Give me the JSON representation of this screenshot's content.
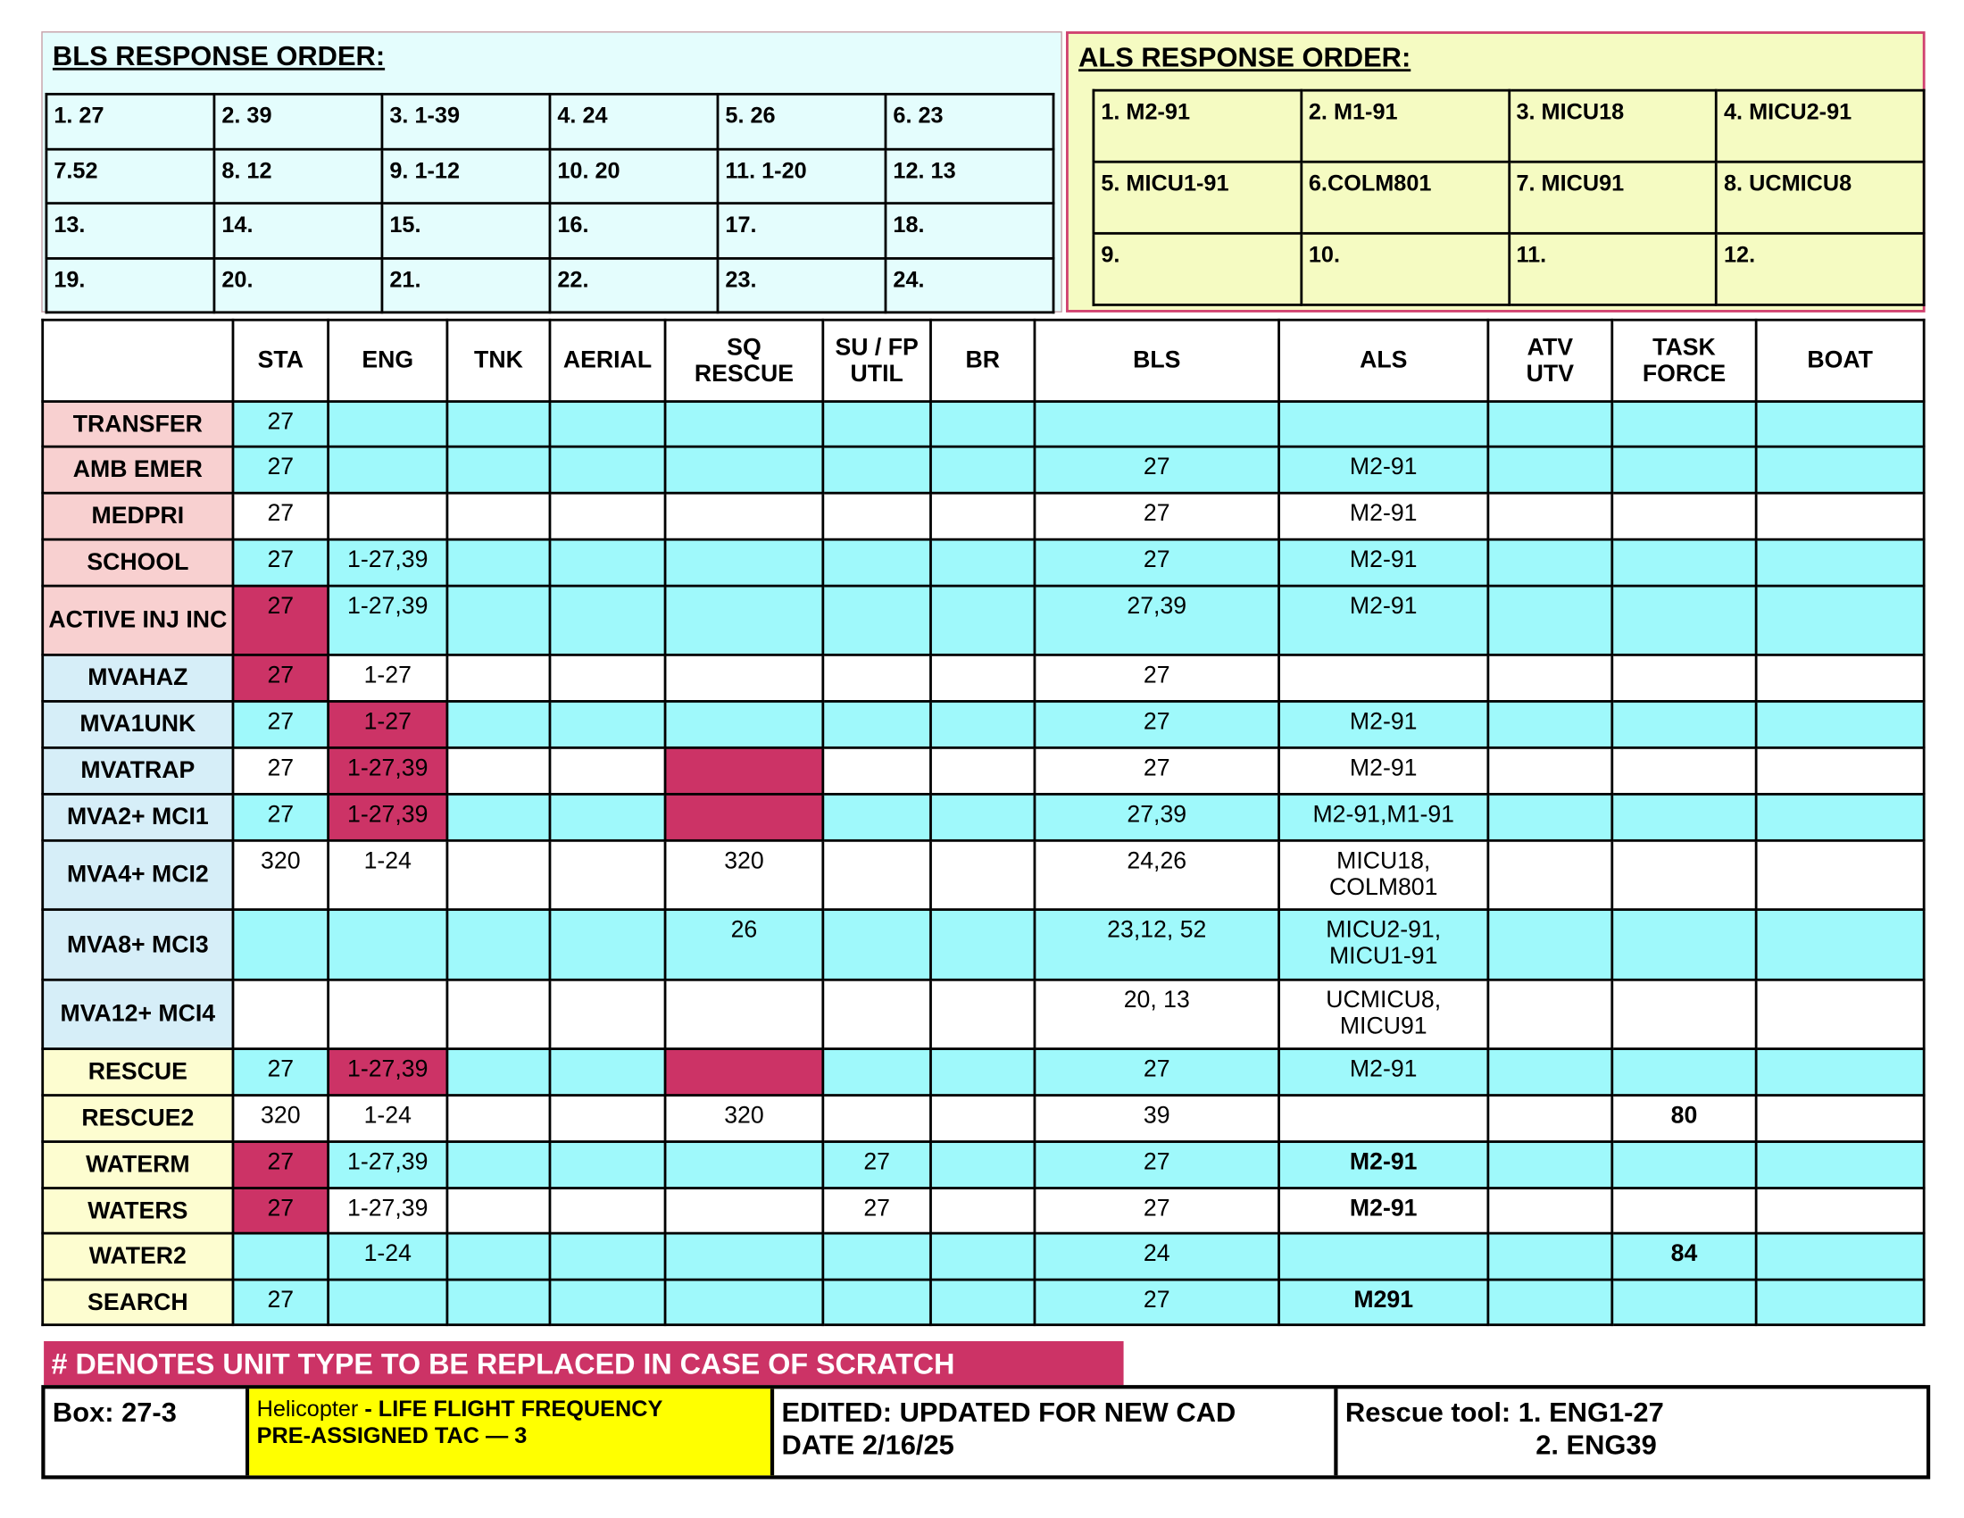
{
  "bls": {
    "title": "BLS RESPONSE ORDER:",
    "rows": [
      [
        "1. 27",
        "2. 39",
        "3. 1-39",
        "4. 24",
        "5. 26",
        "6. 23"
      ],
      [
        "7.52",
        "8. 12",
        "9. 1-12",
        "10. 20",
        "11. 1-20",
        "12. 13"
      ],
      [
        "13.",
        "14.",
        "15.",
        "16.",
        "17.",
        "18."
      ],
      [
        "19.",
        "20.",
        "21.",
        "22.",
        "23.",
        "24."
      ]
    ]
  },
  "als": {
    "title": "ALS RESPONSE ORDER:",
    "rows": [
      [
        "1. M2-91",
        "2. M1-91",
        "3. MICU18",
        "4. MICU2-91"
      ],
      [
        "5. MICU1-91",
        "6.COLM801",
        "7. MICU91",
        "8. UCMICU8"
      ],
      [
        "9.",
        "10.",
        "11.",
        "12."
      ]
    ]
  },
  "table": {
    "headers": [
      "STA",
      "ENG",
      "TNK",
      "AERIAL",
      "SQ\nRESCUE",
      "SU / FP\nUTIL",
      "BR",
      "BLS",
      "ALS",
      "ATV\nUTV",
      "TASK\nFORCE",
      "BOAT"
    ],
    "highlight_color": "#cc3366",
    "rows": [
      {
        "label": "TRANSFER",
        "label_color": "#f8d0d0",
        "fill": "#9ff9fb",
        "highlight": [],
        "bold": [],
        "cells": [
          "27",
          null,
          null,
          null,
          null,
          null,
          null,
          null,
          null,
          null,
          null,
          null
        ]
      },
      {
        "label": "AMB EMER",
        "label_color": "#f8d0d0",
        "fill": "#9ff9fb",
        "highlight": [],
        "bold": [],
        "cells": [
          "27",
          null,
          null,
          null,
          null,
          null,
          null,
          "27",
          "M2-91",
          null,
          null,
          null
        ]
      },
      {
        "label": "MEDPRI",
        "label_color": "#f8d0d0",
        "fill": "#ffffff",
        "highlight": [],
        "bold": [],
        "cells": [
          "27",
          null,
          null,
          null,
          null,
          null,
          null,
          "27",
          "M2-91",
          null,
          null,
          null
        ]
      },
      {
        "label": "SCHOOL",
        "label_color": "#f8d0d0",
        "fill": "#9ff9fb",
        "highlight": [],
        "bold": [],
        "cells": [
          "27",
          "1-27,39",
          null,
          null,
          null,
          null,
          null,
          "27",
          "M2-91",
          null,
          null,
          null
        ]
      },
      {
        "label": "ACTIVE INJ INC",
        "label_color": "#f8d0d0",
        "fill": "#9ff9fb",
        "highlight": [
          0
        ],
        "bold": [],
        "cells": [
          "27",
          "1-27,39",
          null,
          null,
          null,
          null,
          null,
          "27,39",
          "M2-91",
          null,
          null,
          null
        ]
      },
      {
        "label": "MVAHAZ",
        "label_color": "#d6eef8",
        "fill": "#ffffff",
        "highlight": [
          0
        ],
        "bold": [],
        "cells": [
          "27",
          "1-27",
          null,
          null,
          null,
          null,
          null,
          "27",
          null,
          null,
          null,
          null
        ]
      },
      {
        "label": "MVA1UNK",
        "label_color": "#d6eef8",
        "fill": "#9ff9fb",
        "highlight": [
          1
        ],
        "bold": [],
        "cells": [
          "27",
          "1-27",
          null,
          null,
          null,
          null,
          null,
          "27",
          "M2-91",
          null,
          null,
          null
        ]
      },
      {
        "label": "MVATRAP",
        "label_color": "#d6eef8",
        "fill": "#ffffff",
        "highlight": [
          1,
          4
        ],
        "bold": [],
        "cells": [
          "27",
          "1-27,39",
          null,
          null,
          null,
          null,
          null,
          "27",
          "M2-91",
          null,
          null,
          null
        ]
      },
      {
        "label": "MVA2+ MCI1",
        "label_color": "#d6eef8",
        "fill": "#9ff9fb",
        "highlight": [
          1,
          4
        ],
        "bold": [],
        "cells": [
          "27",
          "1-27,39",
          null,
          null,
          null,
          null,
          null,
          "27,39",
          "M2-91,M1-91",
          null,
          null,
          null
        ]
      },
      {
        "label": "MVA4+ MCI2",
        "label_color": "#d6eef8",
        "fill": "#ffffff",
        "highlight": [],
        "bold": [],
        "cells": [
          "320",
          "1-24",
          null,
          null,
          "320",
          null,
          null,
          "24,26",
          "MICU18,\nCOLM801",
          null,
          null,
          null
        ]
      },
      {
        "label": "MVA8+ MCI3",
        "label_color": "#d6eef8",
        "fill": "#9ff9fb",
        "highlight": [],
        "bold": [],
        "cells": [
          null,
          null,
          null,
          null,
          "26",
          null,
          null,
          "23,12, 52",
          "MICU2-91,\nMICU1-91",
          null,
          null,
          null
        ]
      },
      {
        "label": "MVA12+ MCI4",
        "label_color": "#d6eef8",
        "fill": "#ffffff",
        "highlight": [],
        "bold": [],
        "cells": [
          null,
          null,
          null,
          null,
          null,
          null,
          null,
          "20, 13",
          "UCMICU8,\nMICU91",
          null,
          null,
          null
        ]
      },
      {
        "label": "RESCUE",
        "label_color": "#fdfdd0",
        "fill": "#9ff9fb",
        "highlight": [
          1,
          4
        ],
        "bold": [],
        "cells": [
          "27",
          "1-27,39",
          null,
          null,
          null,
          null,
          null,
          "27",
          "M2-91",
          null,
          null,
          null
        ]
      },
      {
        "label": "RESCUE2",
        "label_color": "#fdfdd0",
        "fill": "#ffffff",
        "highlight": [],
        "bold": [
          10
        ],
        "cells": [
          "320",
          "1-24",
          null,
          null,
          "320",
          null,
          null,
          "39",
          null,
          null,
          "80",
          null
        ]
      },
      {
        "label": "WATERM",
        "label_color": "#fdfdd0",
        "fill": "#9ff9fb",
        "highlight": [
          0
        ],
        "bold": [
          8
        ],
        "cells": [
          "27",
          "1-27,39",
          null,
          null,
          null,
          "27",
          null,
          "27",
          "M2-91",
          null,
          null,
          null
        ]
      },
      {
        "label": "WATERS",
        "label_color": "#fdfdd0",
        "fill": "#ffffff",
        "highlight": [
          0
        ],
        "bold": [
          8
        ],
        "cells": [
          "27",
          "1-27,39",
          null,
          null,
          null,
          "27",
          null,
          "27",
          "M2-91",
          null,
          null,
          null
        ]
      },
      {
        "label": "WATER2",
        "label_color": "#fdfdd0",
        "fill": "#9ff9fb",
        "highlight": [],
        "bold": [
          10
        ],
        "cells": [
          null,
          "1-24",
          null,
          null,
          null,
          null,
          null,
          "24",
          null,
          null,
          "84",
          null
        ]
      },
      {
        "label": "SEARCH",
        "label_color": "#fdfdd0",
        "fill": "#9ff9fb",
        "highlight": [],
        "bold": [
          8
        ],
        "cells": [
          "27",
          null,
          null,
          null,
          null,
          null,
          null,
          "27",
          "M291",
          null,
          null,
          null
        ]
      }
    ]
  },
  "footer": {
    "banner": "# DENOTES UNIT  TYPE TO BE REPLACED IN CASE OF SCRATCH",
    "box": "Box:  27-3",
    "helicopter": {
      "prefix": "Helicopter ",
      "line1": " - LIFE FLIGHT FREQUENCY",
      "line2": "PRE-ASSIGNED TAC — 3"
    },
    "edited": {
      "line1": "EDITED:   UPDATED FOR NEW CAD",
      "line2": "DATE  2/16/25"
    },
    "rescue_tool": {
      "line1": "Rescue tool: 1.  ENG1-27",
      "line2": "2. ENG39"
    }
  }
}
